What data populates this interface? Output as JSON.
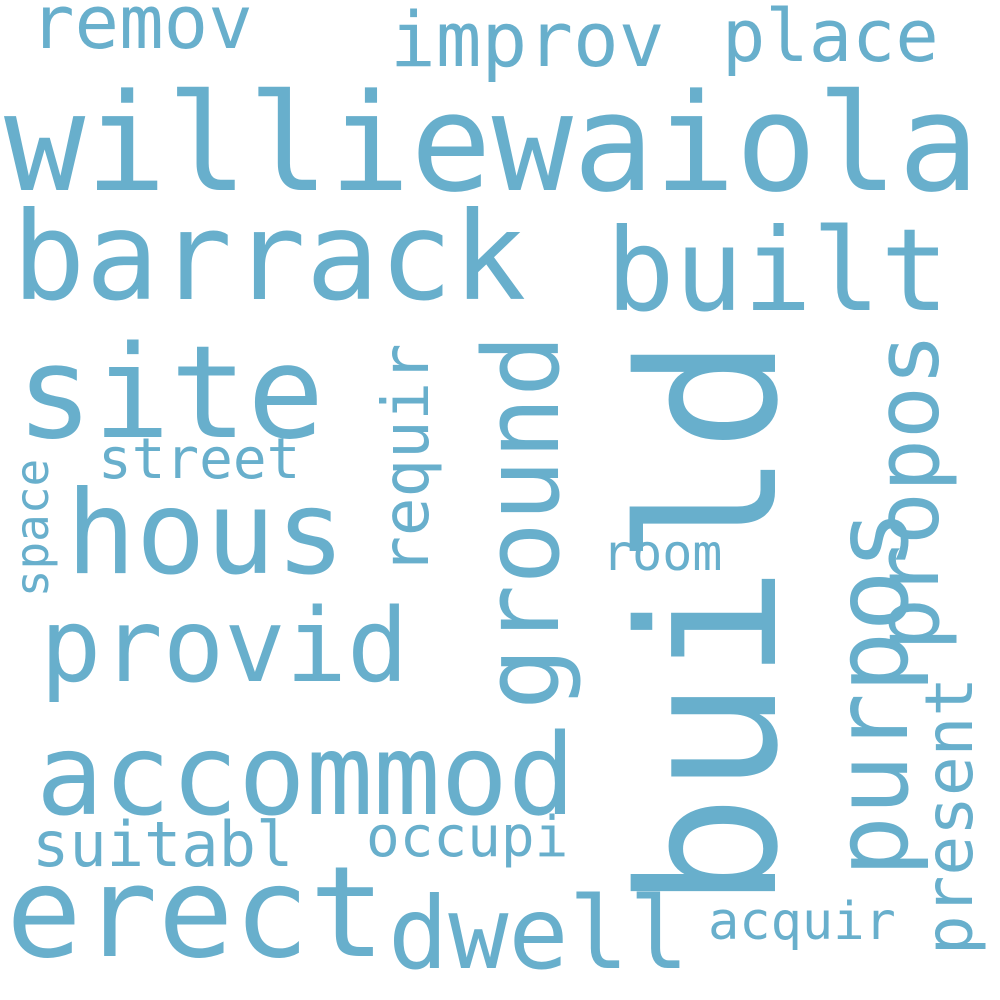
{
  "word_cloud": {
    "color": "#68afcc",
    "background": "#ffffff",
    "words": [
      {
        "text": "williewaiola",
        "orientation": "horizontal"
      },
      {
        "text": "build",
        "orientation": "vertical"
      },
      {
        "text": "barrack",
        "orientation": "horizontal"
      },
      {
        "text": "site",
        "orientation": "horizontal"
      },
      {
        "text": "hous",
        "orientation": "horizontal"
      },
      {
        "text": "accommod",
        "orientation": "horizontal"
      },
      {
        "text": "erect",
        "orientation": "horizontal"
      },
      {
        "text": "provid",
        "orientation": "horizontal"
      },
      {
        "text": "built",
        "orientation": "horizontal"
      },
      {
        "text": "ground",
        "orientation": "vertical"
      },
      {
        "text": "purpos",
        "orientation": "vertical"
      },
      {
        "text": "dwell",
        "orientation": "horizontal"
      },
      {
        "text": "improv",
        "orientation": "horizontal"
      },
      {
        "text": "remov",
        "orientation": "horizontal"
      },
      {
        "text": "place",
        "orientation": "horizontal"
      },
      {
        "text": "propos",
        "orientation": "vertical"
      },
      {
        "text": "present",
        "orientation": "vertical"
      },
      {
        "text": "requir",
        "orientation": "vertical"
      },
      {
        "text": "suitabl",
        "orientation": "horizontal"
      },
      {
        "text": "occupi",
        "orientation": "horizontal"
      },
      {
        "text": "street",
        "orientation": "horizontal"
      },
      {
        "text": "acquir",
        "orientation": "horizontal"
      },
      {
        "text": "room",
        "orientation": "horizontal"
      },
      {
        "text": "space",
        "orientation": "vertical"
      }
    ]
  }
}
